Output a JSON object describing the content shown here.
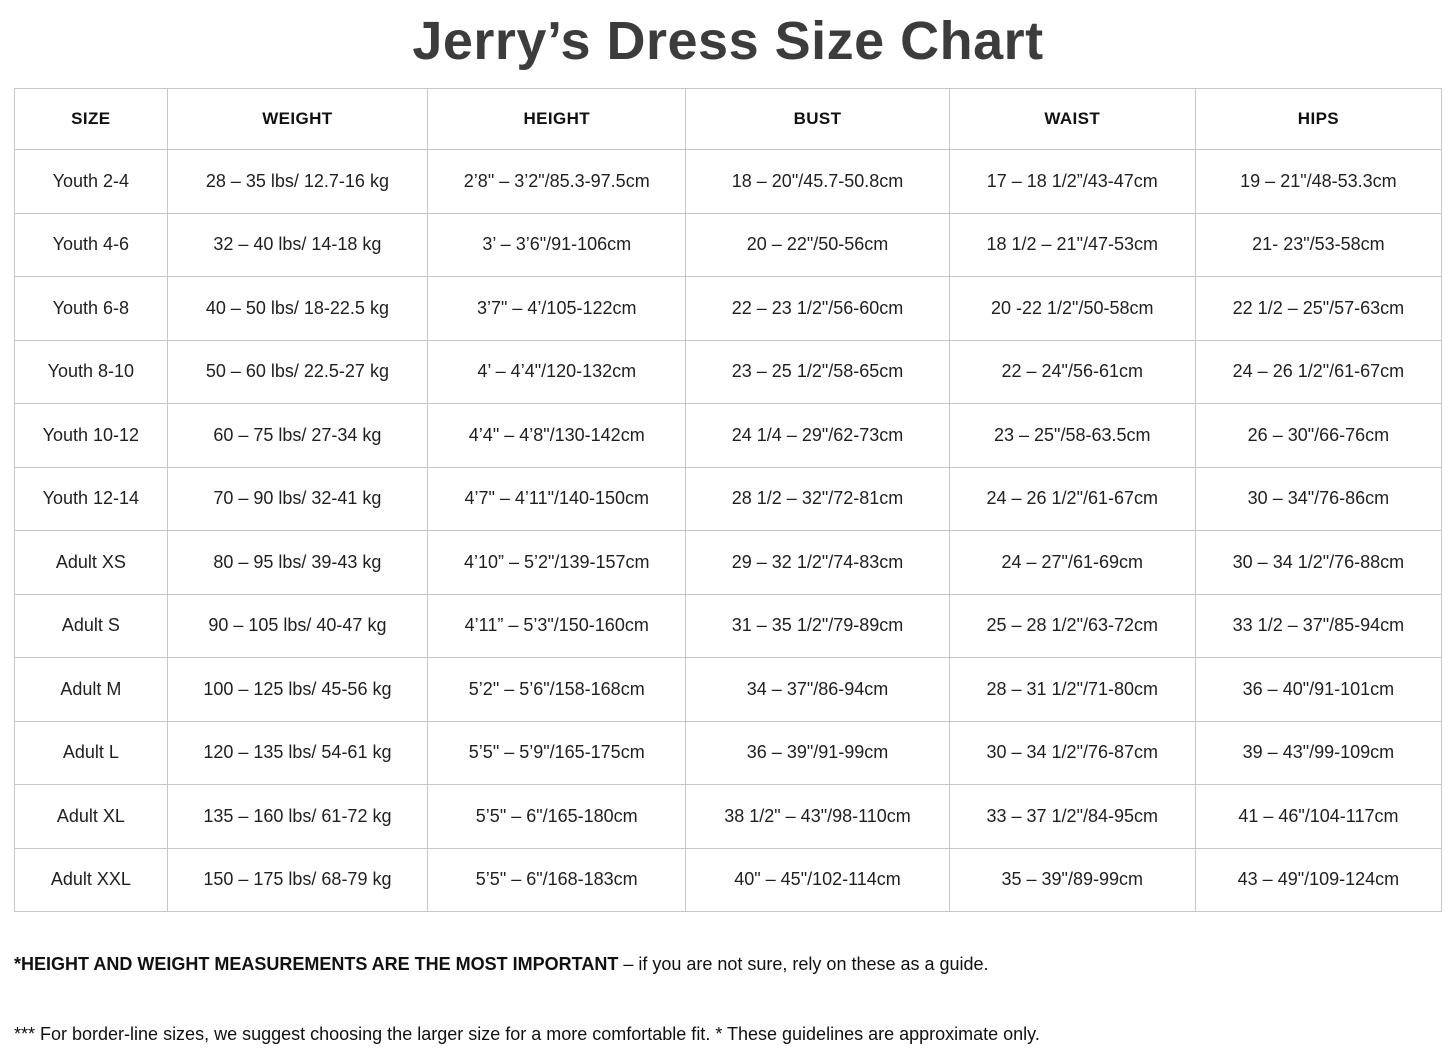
{
  "page": {
    "title": "Jerry’s Dress Size Chart",
    "background": "#ffffff"
  },
  "colors": {
    "title_text": "#3c3c3c",
    "body_text": "#1f1f1f",
    "header_text": "#111111",
    "table_border": "#c6c6c6"
  },
  "chart_data": {
    "type": "table",
    "title": "Jerry’s Dress Size Chart",
    "columns": [
      "SIZE",
      "WEIGHT",
      "HEIGHT",
      "BUST",
      "WAIST",
      "HIPS"
    ],
    "column_keys": [
      "size",
      "weight",
      "height",
      "bust",
      "waist",
      "hips"
    ],
    "rows": [
      [
        "Youth 2-4",
        "28 – 35 lbs/ 12.7-16 kg",
        "2’8\" – 3’2\"/85.3-97.5cm",
        "18 – 20\"/45.7-50.8cm",
        "17 – 18 1/2”/43-47cm",
        "19 – 21\"/48-53.3cm"
      ],
      [
        "Youth 4-6",
        "32 – 40 lbs/ 14-18 kg",
        "3’ – 3’6\"/91-106cm",
        "20 – 22\"/50-56cm",
        "18 1/2 – 21\"/47-53cm",
        "21- 23\"/53-58cm"
      ],
      [
        "Youth 6-8",
        "40 – 50 lbs/ 18-22.5 kg",
        "3’7\" – 4’/105-122cm",
        "22 – 23 1/2\"/56-60cm",
        "20 -22 1/2\"/50-58cm",
        "22 1/2 – 25\"/57-63cm"
      ],
      [
        "Youth 8-10",
        "50 – 60 lbs/ 22.5-27 kg",
        "4’ – 4’4\"/120-132cm",
        "23 – 25 1/2\"/58-65cm",
        "22 – 24\"/56-61cm",
        "24 – 26 1/2\"/61-67cm"
      ],
      [
        "Youth 10-12",
        "60 – 75 lbs/ 27-34 kg",
        "4’4\" – 4’8\"/130-142cm",
        "24 1/4 – 29\"/62-73cm",
        "23 – 25\"/58-63.5cm",
        "26 – 30\"/66-76cm"
      ],
      [
        "Youth 12-14",
        "70 – 90 lbs/ 32-41 kg",
        "4’7\" – 4’11\"/140-150cm",
        "28 1/2 – 32\"/72-81cm",
        "24 – 26 1/2\"/61-67cm",
        "30 – 34\"/76-86cm"
      ],
      [
        "Adult XS",
        "80 – 95 lbs/ 39-43 kg",
        "4’10” – 5’2\"/139-157cm",
        "29 – 32 1/2\"/74-83cm",
        "24 – 27\"/61-69cm",
        "30 – 34 1/2\"/76-88cm"
      ],
      [
        "Adult S",
        "90 – 105 lbs/ 40-47 kg",
        "4’11” – 5’3\"/150-160cm",
        "31 – 35 1/2\"/79-89cm",
        "25 – 28 1/2\"/63-72cm",
        "33 1/2 – 37\"/85-94cm"
      ],
      [
        "Adult M",
        "100 – 125 lbs/ 45-56 kg",
        "5’2\" – 5’6\"/158-168cm",
        "34 – 37\"/86-94cm",
        "28 – 31 1/2\"/71-80cm",
        "36 – 40\"/91-101cm"
      ],
      [
        "Adult L",
        "120 – 135 lbs/ 54-61 kg",
        "5’5\" – 5’9\"/165-175cm",
        "36 – 39\"/91-99cm",
        "30 – 34 1/2\"/76-87cm",
        "39 – 43\"/99-109cm"
      ],
      [
        "Adult XL",
        "135 – 160 lbs/ 61-72 kg",
        "5’5\" – 6\"/165-180cm",
        "38 1/2\" – 43\"/98-110cm",
        "33 – 37 1/2\"/84-95cm",
        "41 – 46\"/104-117cm"
      ],
      [
        "Adult XXL",
        "150 – 175 lbs/ 68-79 kg",
        "5’5\" – 6\"/168-183cm",
        "40\" – 45\"/102-114cm",
        "35 – 39\"/89-99cm",
        "43 – 49\"/109-124cm"
      ]
    ]
  },
  "footnotes": [
    {
      "bold": "*HEIGHT AND WEIGHT MEASUREMENTS ARE THE MOST IMPORTANT",
      "regular": " – if you are not sure, rely on these as a guide."
    },
    {
      "bold": "",
      "regular": "*** For border-line sizes, we suggest choosing the larger size for a more comfortable fit. * These guidelines are approximate only."
    }
  ]
}
